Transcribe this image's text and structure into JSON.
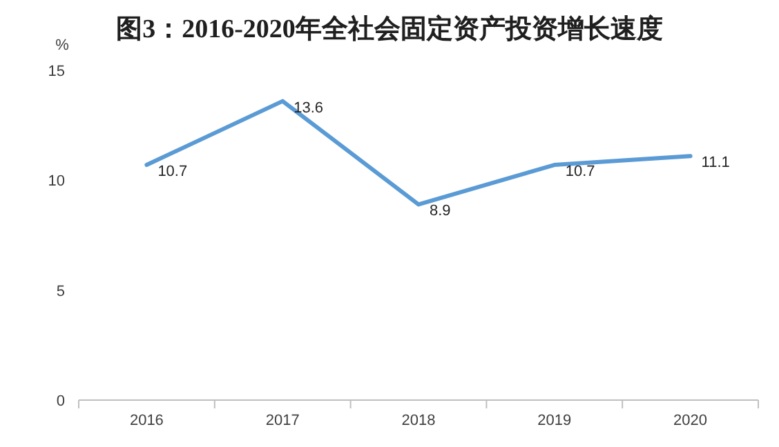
{
  "chart_data": {
    "type": "line",
    "title": "图3：2016-2020年全社会固定资产投资增长速度",
    "ylabel": "%",
    "categories": [
      "2016",
      "2017",
      "2018",
      "2019",
      "2020"
    ],
    "values": [
      10.7,
      13.6,
      8.9,
      10.7,
      11.1
    ],
    "color": "#5b9bd5",
    "ylim": [
      0,
      15
    ],
    "yticks": [
      0,
      5,
      10,
      15
    ],
    "data_labels": true
  }
}
